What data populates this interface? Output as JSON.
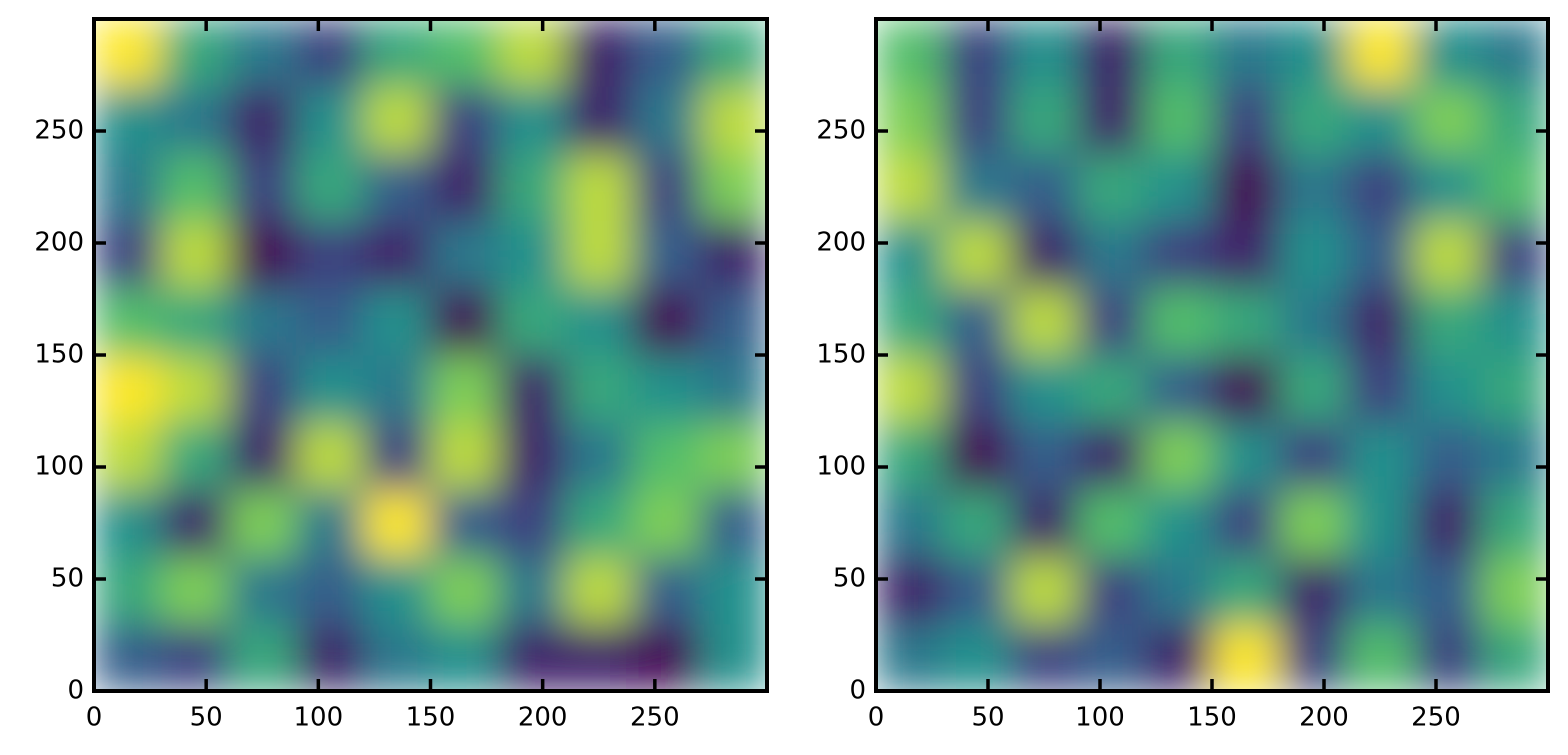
{
  "chart_data": [
    {
      "type": "heatmap",
      "colormap": "viridis",
      "vlim": [
        0,
        1
      ],
      "xlim": [
        0,
        300
      ],
      "ylim": [
        0,
        300
      ],
      "xticks": [
        0,
        50,
        100,
        150,
        200,
        250
      ],
      "yticks": [
        0,
        50,
        100,
        150,
        200,
        250
      ],
      "values": [
        [
          0.3,
          0.2,
          0.6,
          0.1,
          0.4,
          0.5,
          0.1,
          0.1,
          0.0,
          0.5
        ],
        [
          0.6,
          0.8,
          0.4,
          0.3,
          0.5,
          0.8,
          0.4,
          0.9,
          0.3,
          0.5
        ],
        [
          0.5,
          0.1,
          0.8,
          0.4,
          1.0,
          0.3,
          0.2,
          0.6,
          0.8,
          0.3
        ],
        [
          0.9,
          0.6,
          0.1,
          0.9,
          0.2,
          0.9,
          0.1,
          0.4,
          0.7,
          0.8
        ],
        [
          1.0,
          0.9,
          0.2,
          0.5,
          0.4,
          0.8,
          0.1,
          0.6,
          0.5,
          0.4
        ],
        [
          0.7,
          0.6,
          0.4,
          0.3,
          0.5,
          0.0,
          0.6,
          0.5,
          0.0,
          0.3
        ],
        [
          0.2,
          0.9,
          0.0,
          0.2,
          0.1,
          0.4,
          0.5,
          0.9,
          0.3,
          0.1
        ],
        [
          0.4,
          0.7,
          0.2,
          0.6,
          0.3,
          0.1,
          0.6,
          0.9,
          0.2,
          0.8
        ],
        [
          0.5,
          0.4,
          0.1,
          0.5,
          0.9,
          0.2,
          0.5,
          0.1,
          0.4,
          0.9
        ],
        [
          1.0,
          0.6,
          0.4,
          0.2,
          0.6,
          0.7,
          0.9,
          0.1,
          0.3,
          0.6
        ]
      ]
    },
    {
      "type": "heatmap",
      "colormap": "viridis",
      "vlim": [
        0,
        1
      ],
      "xlim": [
        0,
        300
      ],
      "ylim": [
        0,
        300
      ],
      "xticks": [
        0,
        50,
        100,
        150,
        200,
        250
      ],
      "yticks": [
        0,
        50,
        100,
        150,
        200,
        250
      ],
      "values": [
        [
          0.4,
          0.5,
          0.2,
          0.3,
          0.1,
          1.0,
          0.2,
          0.7,
          0.2,
          0.6
        ],
        [
          0.1,
          0.3,
          0.9,
          0.2,
          0.4,
          0.6,
          0.1,
          0.4,
          0.3,
          0.8
        ],
        [
          0.4,
          0.6,
          0.1,
          0.7,
          0.5,
          0.2,
          0.8,
          0.5,
          0.1,
          0.6
        ],
        [
          0.6,
          0.0,
          0.3,
          0.1,
          0.8,
          0.5,
          0.2,
          0.5,
          0.3,
          0.4
        ],
        [
          0.9,
          0.2,
          0.5,
          0.6,
          0.3,
          0.0,
          0.6,
          0.2,
          0.5,
          0.6
        ],
        [
          0.6,
          0.3,
          0.9,
          0.2,
          0.7,
          0.6,
          0.4,
          0.1,
          0.6,
          0.5
        ],
        [
          0.5,
          0.9,
          0.1,
          0.4,
          0.2,
          0.1,
          0.5,
          0.3,
          0.9,
          0.2
        ],
        [
          0.9,
          0.4,
          0.3,
          0.6,
          0.5,
          0.0,
          0.4,
          0.2,
          0.5,
          0.7
        ],
        [
          0.8,
          0.2,
          0.6,
          0.1,
          0.7,
          0.2,
          0.6,
          0.5,
          0.8,
          0.6
        ],
        [
          0.7,
          0.2,
          0.5,
          0.1,
          0.6,
          0.4,
          0.5,
          1.0,
          0.5,
          0.4
        ]
      ]
    }
  ]
}
